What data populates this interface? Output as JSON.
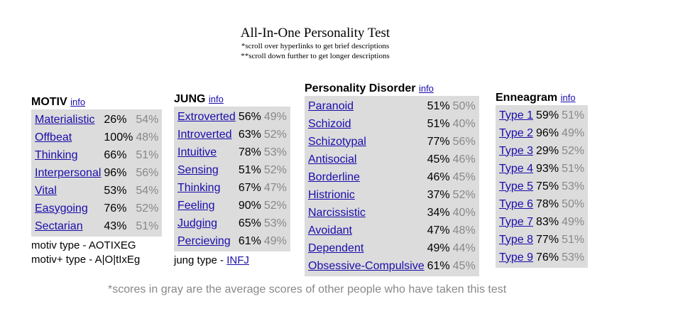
{
  "header": {
    "title": "All-In-One Personality Test",
    "note1": "*scroll over hyperlinks to get brief descriptions",
    "note2": "**scroll down further to get longer descriptions"
  },
  "info_label": "info",
  "motiv": {
    "title": "MOTIV",
    "rows": [
      {
        "name": "Materialistic",
        "score": "26%",
        "avg": "54%"
      },
      {
        "name": "Offbeat",
        "score": "100%",
        "avg": "48%"
      },
      {
        "name": "Thinking",
        "score": "66%",
        "avg": "51%"
      },
      {
        "name": "Interpersonal",
        "score": "96%",
        "avg": "56%"
      },
      {
        "name": "Vital",
        "score": "53%",
        "avg": "54%"
      },
      {
        "name": "Easygoing",
        "score": "76%",
        "avg": "52%"
      },
      {
        "name": "Sectarian",
        "score": "43%",
        "avg": "51%"
      }
    ],
    "type_line": "motiv type - AOTIXEG",
    "type_plus_line": "motiv+ type - A|O|tIxEg"
  },
  "jung": {
    "title": "JUNG",
    "rows": [
      {
        "name": "Extroverted",
        "score": "56%",
        "avg": "49%"
      },
      {
        "name": "Introverted",
        "score": "63%",
        "avg": "52%"
      },
      {
        "name": "Intuitive",
        "score": "78%",
        "avg": "53%"
      },
      {
        "name": "Sensing",
        "score": "51%",
        "avg": "52%"
      },
      {
        "name": "Thinking",
        "score": "67%",
        "avg": "47%"
      },
      {
        "name": "Feeling",
        "score": "90%",
        "avg": "52%"
      },
      {
        "name": "Judging",
        "score": "65%",
        "avg": "53%"
      },
      {
        "name": "Percieving",
        "score": "61%",
        "avg": "49%"
      }
    ],
    "type_label": "jung type - ",
    "type_value": "INFJ"
  },
  "disorder": {
    "title": "Personality Disorder",
    "rows": [
      {
        "name": "Paranoid",
        "score": "51%",
        "avg": "50%"
      },
      {
        "name": "Schizoid",
        "score": "51%",
        "avg": "40%"
      },
      {
        "name": "Schizotypal",
        "score": "77%",
        "avg": "56%"
      },
      {
        "name": "Antisocial",
        "score": "45%",
        "avg": "46%"
      },
      {
        "name": "Borderline",
        "score": "46%",
        "avg": "45%"
      },
      {
        "name": "Histrionic",
        "score": "37%",
        "avg": "52%"
      },
      {
        "name": "Narcissistic",
        "score": "34%",
        "avg": "40%"
      },
      {
        "name": "Avoidant",
        "score": "47%",
        "avg": "48%"
      },
      {
        "name": "Dependent",
        "score": "49%",
        "avg": "44%"
      },
      {
        "name": "Obsessive-Compulsive",
        "score": "61%",
        "avg": "45%"
      }
    ]
  },
  "enneagram": {
    "title": "Enneagram",
    "rows": [
      {
        "name": "Type 1",
        "score": "59%",
        "avg": "51%"
      },
      {
        "name": "Type 2",
        "score": "96%",
        "avg": "49%"
      },
      {
        "name": "Type 3",
        "score": "29%",
        "avg": "52%"
      },
      {
        "name": "Type 4",
        "score": "93%",
        "avg": "51%"
      },
      {
        "name": "Type 5",
        "score": "75%",
        "avg": "53%"
      },
      {
        "name": "Type 6",
        "score": "78%",
        "avg": "50%"
      },
      {
        "name": "Type 7",
        "score": "83%",
        "avg": "49%"
      },
      {
        "name": "Type 8",
        "score": "77%",
        "avg": "51%"
      },
      {
        "name": "Type 9",
        "score": "76%",
        "avg": "53%"
      }
    ]
  },
  "footnote": "*scores in gray are the average scores of other people who have taken this test",
  "colors": {
    "link": "#1a0dab",
    "box": "#dcdcdc",
    "avg": "#888888"
  }
}
